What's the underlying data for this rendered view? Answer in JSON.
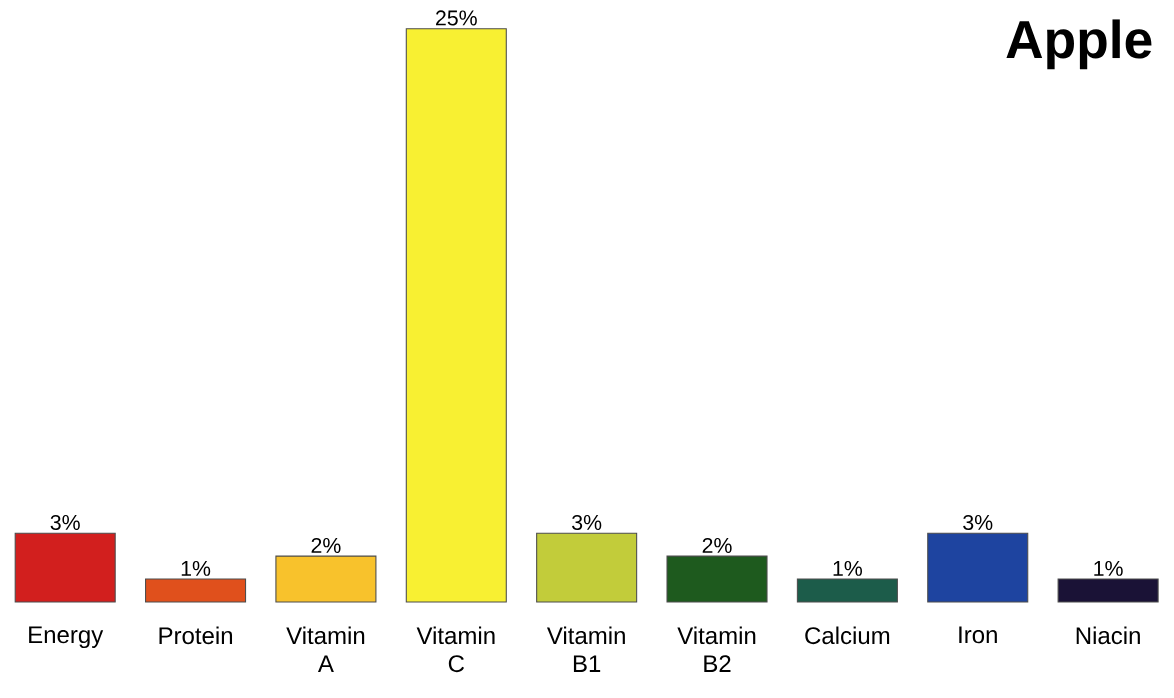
{
  "chart_data": {
    "type": "bar",
    "title": "Apple",
    "categories": [
      "Energy",
      "Protein",
      "Vitamin A",
      "Vitamin C",
      "Vitamin B1",
      "Vitamin B2",
      "Calcium",
      "Iron",
      "Niacin"
    ],
    "values": [
      3,
      1,
      2,
      25,
      3,
      2,
      1,
      3,
      1
    ],
    "value_labels": [
      "3%",
      "1%",
      "2%",
      "25%",
      "3%",
      "2%",
      "1%",
      "3%",
      "1%"
    ],
    "colors": [
      "#d21f1e",
      "#e0501c",
      "#f8c22c",
      "#f8f032",
      "#c2cc3a",
      "#1e5a1e",
      "#1c5c4a",
      "#1e44a0",
      "#1a1236"
    ]
  }
}
